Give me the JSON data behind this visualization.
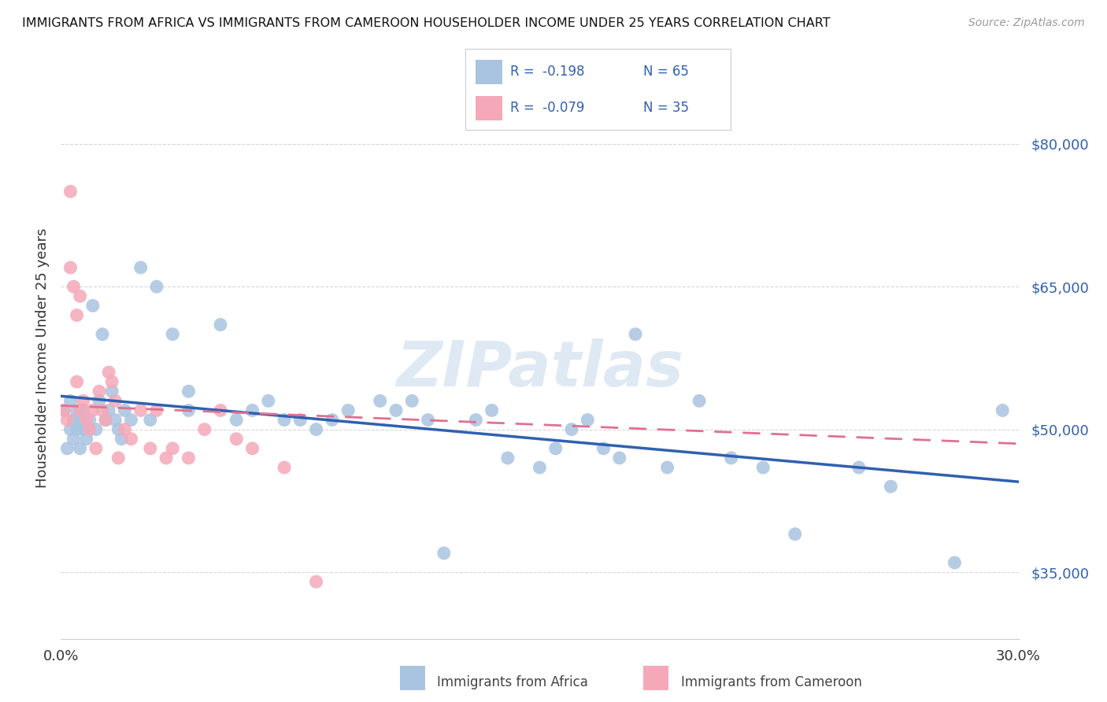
{
  "title": "IMMIGRANTS FROM AFRICA VS IMMIGRANTS FROM CAMEROON HOUSEHOLDER INCOME UNDER 25 YEARS CORRELATION CHART",
  "source": "Source: ZipAtlas.com",
  "ylabel": "Householder Income Under 25 years",
  "xlim": [
    0.0,
    0.3
  ],
  "ylim": [
    28000,
    87000
  ],
  "ytick_positions": [
    35000,
    50000,
    65000,
    80000
  ],
  "ytick_labels": [
    "$35,000",
    "$50,000",
    "$65,000",
    "$80,000"
  ],
  "africa_color": "#a8c4e0",
  "cameroon_color": "#f4a8b8",
  "africa_line_color": "#3060b0",
  "cameroon_line_color": "#e07090",
  "legend_R_africa": "R =  -0.198",
  "legend_N_africa": "N = 65",
  "legend_R_cameroon": "R =  -0.079",
  "legend_N_cameroon": "N = 35",
  "legend_label_africa": "Immigrants from Africa",
  "legend_label_cameroon": "Immigrants from Cameroon",
  "africa_line_x0": 0.0,
  "africa_line_x1": 0.3,
  "africa_line_y0": 53500,
  "africa_line_y1": 44500,
  "cameroon_line_x0": 0.0,
  "cameroon_line_x1": 0.3,
  "cameroon_line_y0": 52500,
  "cameroon_line_y1": 48500,
  "africa_x": [
    0.001,
    0.002,
    0.003,
    0.003,
    0.004,
    0.004,
    0.005,
    0.005,
    0.006,
    0.006,
    0.007,
    0.007,
    0.008,
    0.009,
    0.01,
    0.011,
    0.012,
    0.013,
    0.014,
    0.015,
    0.016,
    0.017,
    0.018,
    0.019,
    0.02,
    0.022,
    0.025,
    0.028,
    0.03,
    0.035,
    0.04,
    0.04,
    0.05,
    0.055,
    0.06,
    0.065,
    0.07,
    0.075,
    0.08,
    0.085,
    0.09,
    0.1,
    0.105,
    0.11,
    0.115,
    0.12,
    0.13,
    0.135,
    0.14,
    0.15,
    0.155,
    0.16,
    0.165,
    0.17,
    0.175,
    0.18,
    0.19,
    0.2,
    0.21,
    0.22,
    0.23,
    0.25,
    0.26,
    0.28,
    0.295
  ],
  "africa_y": [
    52000,
    48000,
    50000,
    53000,
    51000,
    49000,
    52000,
    50000,
    48000,
    51000,
    50000,
    52000,
    49000,
    51000,
    63000,
    50000,
    53000,
    60000,
    51000,
    52000,
    54000,
    51000,
    50000,
    49000,
    52000,
    51000,
    67000,
    51000,
    65000,
    60000,
    54000,
    52000,
    61000,
    51000,
    52000,
    53000,
    51000,
    51000,
    50000,
    51000,
    52000,
    53000,
    52000,
    53000,
    51000,
    37000,
    51000,
    52000,
    47000,
    46000,
    48000,
    50000,
    51000,
    48000,
    47000,
    60000,
    46000,
    53000,
    47000,
    46000,
    39000,
    46000,
    44000,
    36000,
    52000
  ],
  "cameroon_x": [
    0.001,
    0.002,
    0.003,
    0.003,
    0.004,
    0.005,
    0.005,
    0.006,
    0.006,
    0.007,
    0.008,
    0.009,
    0.01,
    0.011,
    0.012,
    0.013,
    0.014,
    0.015,
    0.016,
    0.017,
    0.018,
    0.02,
    0.022,
    0.025,
    0.028,
    0.03,
    0.033,
    0.035,
    0.04,
    0.045,
    0.05,
    0.055,
    0.06,
    0.07,
    0.08
  ],
  "cameroon_y": [
    52000,
    51000,
    75000,
    67000,
    65000,
    62000,
    55000,
    64000,
    52000,
    53000,
    51000,
    50000,
    52000,
    48000,
    54000,
    52000,
    51000,
    56000,
    55000,
    53000,
    47000,
    50000,
    49000,
    52000,
    48000,
    52000,
    47000,
    48000,
    47000,
    50000,
    52000,
    49000,
    48000,
    46000,
    34000
  ],
  "watermark": "ZIPatlas",
  "background_color": "#ffffff",
  "grid_color": "#cccccc"
}
